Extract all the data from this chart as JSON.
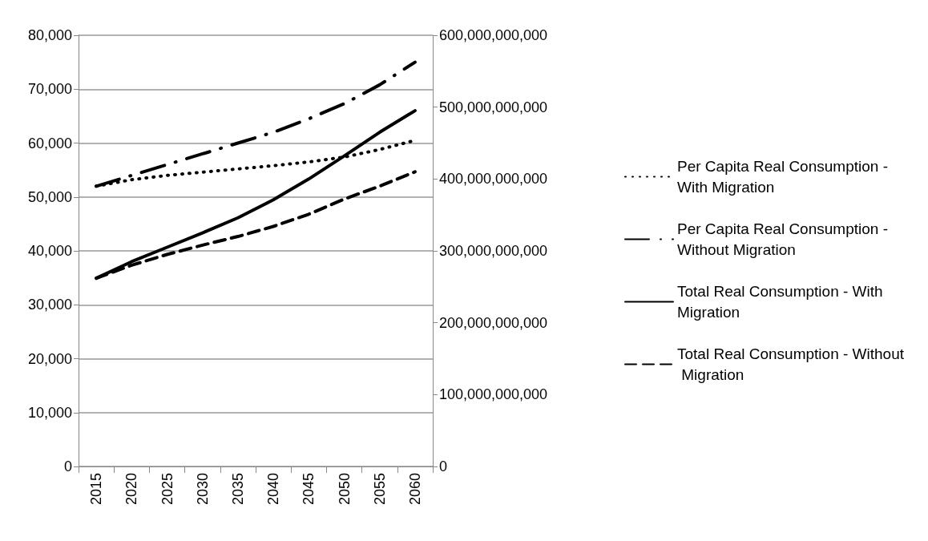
{
  "chart_data": {
    "type": "line",
    "categories": [
      "2015",
      "2020",
      "2025",
      "2030",
      "2035",
      "2040",
      "2045",
      "2050",
      "2055",
      "2060"
    ],
    "series": [
      {
        "name": "Per Capita Real Consumption - With Migration",
        "color": "#000000",
        "line_style": "dotted",
        "values": [
          52000,
          53200,
          54000,
          54600,
          55200,
          55800,
          56500,
          57400,
          58800,
          60500
        ]
      },
      {
        "name": "Per Capita Real Consumption - Without Migration",
        "color": "#000000",
        "line_style": "dashdot",
        "values": [
          52000,
          54000,
          56000,
          58000,
          60000,
          62000,
          64500,
          67300,
          70800,
          75000
        ]
      },
      {
        "name": "Total Real Consumption - With Migration",
        "color": "#000000",
        "line_style": "solid",
        "axis": "y2",
        "values": [
          262000000000,
          285000000000,
          305000000000,
          325000000000,
          346000000000,
          371000000000,
          400000000000,
          432000000000,
          465000000000,
          495000000000
        ]
      },
      {
        "name": "Total Real Consumption - Without Migration",
        "color": "#000000",
        "line_style": "dashed",
        "axis": "y2",
        "values": [
          262000000000,
          280000000000,
          295000000000,
          308000000000,
          320000000000,
          334000000000,
          351000000000,
          372000000000,
          390000000000,
          410000000000
        ]
      }
    ],
    "ylim": [
      0,
      80000
    ],
    "yticks": [
      0,
      {
        "value": 10000,
        "label": "10,000"
      },
      {
        "value": 20000,
        "label": "20,000"
      },
      {
        "value": 30000,
        "label": "30,000"
      },
      {
        "value": 40000,
        "label": "40,000"
      },
      {
        "value": 50000,
        "label": "50,000"
      },
      {
        "value": 60000,
        "label": "60,000"
      },
      {
        "value": 70000,
        "label": "70,000"
      },
      {
        "value": 80000,
        "label": "80,000"
      }
    ],
    "y2lim": [
      0,
      600000000000
    ],
    "y2ticks": [
      0,
      {
        "value": 100000000000,
        "label": "100,000,000,000"
      },
      {
        "value": 200000000000,
        "label": "200,000,000,000"
      },
      {
        "value": 300000000000,
        "label": "300,000,000,000"
      },
      {
        "value": 400000000000,
        "label": "400,000,000,000"
      },
      {
        "value": 500000000000,
        "label": "500,000,000,000"
      },
      {
        "value": 600000000000,
        "label": "600,000,000,000"
      }
    ],
    "grid": "y",
    "legend": "right",
    "marker": "none"
  }
}
